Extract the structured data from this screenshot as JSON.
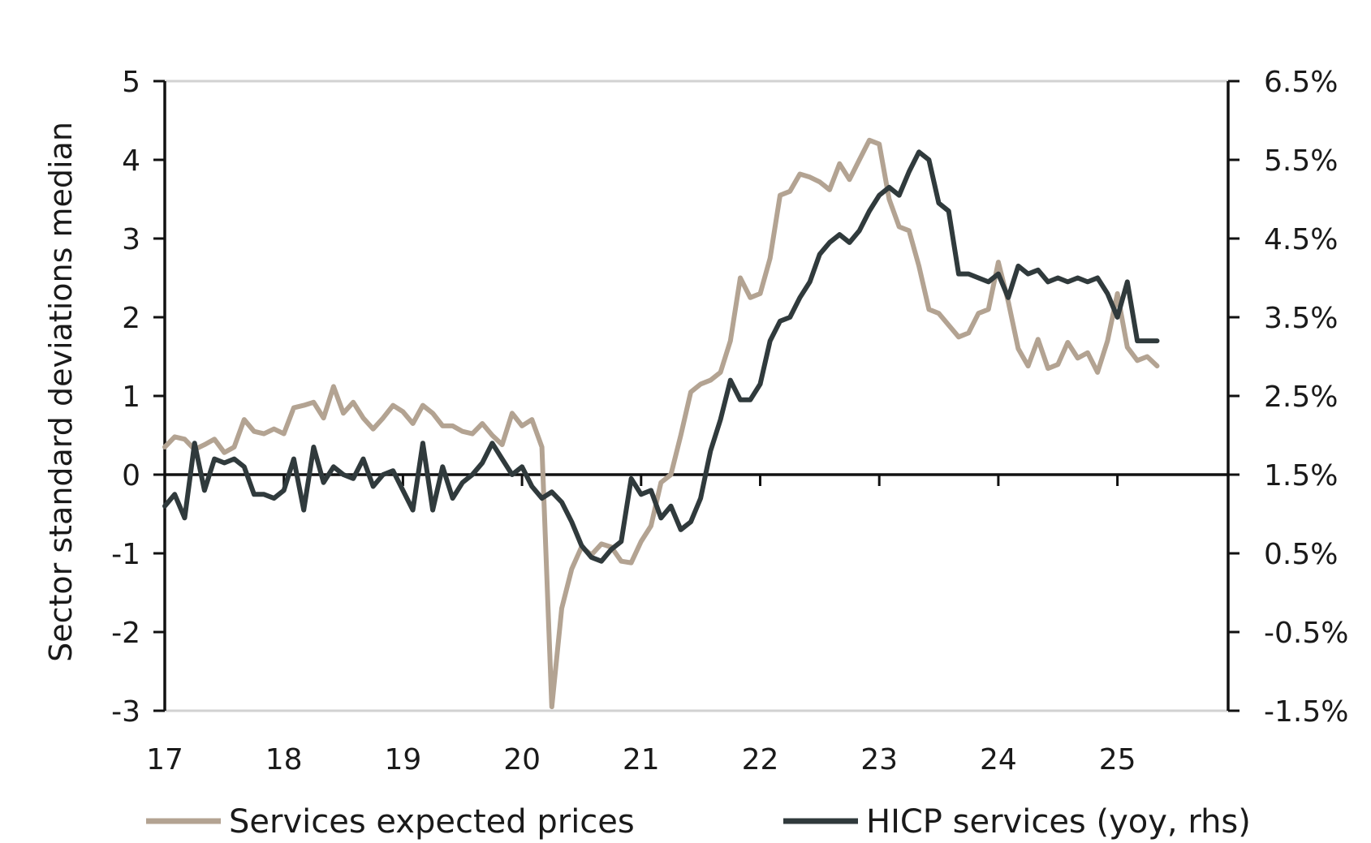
{
  "chart_data": {
    "type": "line",
    "ylabel": "Sector standard deviations median",
    "ylim": [
      -3,
      5
    ],
    "y_ticks": [
      "5",
      "4",
      "3",
      "2",
      "1",
      "0",
      "-1",
      "-2",
      "-3"
    ],
    "y2lim": [
      -1.5,
      6.5
    ],
    "y2_ticks": [
      "6.5%",
      "5.5%",
      "4.5%",
      "3.5%",
      "2.5%",
      "1.5%",
      "0.5%",
      "-0.5%",
      "-1.5%"
    ],
    "x_tick_labels": [
      "17",
      "18",
      "19",
      "20",
      "21",
      "22",
      "23",
      "24",
      "25"
    ],
    "grid": false,
    "legend_position": "bottom",
    "series": [
      {
        "name": "Services expected prices",
        "axis": "left",
        "color": "#b3a392",
        "x": [
          17.0,
          17.083,
          17.167,
          17.25,
          17.333,
          17.417,
          17.5,
          17.583,
          17.667,
          17.75,
          17.833,
          17.917,
          18.0,
          18.083,
          18.167,
          18.25,
          18.333,
          18.417,
          18.5,
          18.583,
          18.667,
          18.75,
          18.833,
          18.917,
          19.0,
          19.083,
          19.167,
          19.25,
          19.333,
          19.417,
          19.5,
          19.583,
          19.667,
          19.75,
          19.833,
          19.917,
          20.0,
          20.083,
          20.167,
          20.25,
          20.333,
          20.417,
          20.5,
          20.583,
          20.667,
          20.75,
          20.833,
          20.917,
          21.0,
          21.083,
          21.167,
          21.25,
          21.333,
          21.417,
          21.5,
          21.583,
          21.667,
          21.75,
          21.833,
          21.917,
          22.0,
          22.083,
          22.167,
          22.25,
          22.333,
          22.417,
          22.5,
          22.583,
          22.667,
          22.75,
          22.833,
          22.917,
          23.0,
          23.083,
          23.167,
          23.25,
          23.333,
          23.417,
          23.5,
          23.583,
          23.667,
          23.75,
          23.833,
          23.917,
          24.0,
          24.083,
          24.167,
          24.25,
          24.333,
          24.417,
          24.5,
          24.583,
          24.667,
          24.75,
          24.833,
          24.917,
          25.0,
          25.083,
          25.167,
          25.25,
          25.333
        ],
        "values": [
          0.35,
          0.48,
          0.45,
          0.32,
          0.38,
          0.45,
          0.28,
          0.35,
          0.7,
          0.55,
          0.52,
          0.58,
          0.52,
          0.85,
          0.88,
          0.92,
          0.72,
          1.12,
          0.78,
          0.92,
          0.72,
          0.58,
          0.72,
          0.88,
          0.8,
          0.65,
          0.88,
          0.78,
          0.62,
          0.62,
          0.55,
          0.52,
          0.65,
          0.5,
          0.38,
          0.78,
          0.62,
          0.7,
          0.35,
          -2.95,
          -1.7,
          -1.2,
          -0.92,
          -1.02,
          -0.88,
          -0.92,
          -1.1,
          -1.12,
          -0.85,
          -0.65,
          -0.1,
          0.0,
          0.5,
          1.05,
          1.15,
          1.2,
          1.3,
          1.7,
          2.5,
          2.25,
          2.3,
          2.75,
          3.55,
          3.6,
          3.82,
          3.78,
          3.72,
          3.62,
          3.95,
          3.75,
          4.0,
          4.25,
          4.2,
          3.5,
          3.15,
          3.1,
          2.65,
          2.1,
          2.05,
          1.9,
          1.75,
          1.8,
          2.05,
          2.1,
          2.7,
          2.2,
          1.6,
          1.38,
          1.72,
          1.35,
          1.4,
          1.68,
          1.48,
          1.55,
          1.3,
          1.7,
          2.3,
          1.62,
          1.45,
          1.5,
          1.38
        ]
      },
      {
        "name": "HICP services (yoy, rhs)",
        "axis": "right",
        "color": "#303a3c",
        "x": [
          17.0,
          17.083,
          17.167,
          17.25,
          17.333,
          17.417,
          17.5,
          17.583,
          17.667,
          17.75,
          17.833,
          17.917,
          18.0,
          18.083,
          18.167,
          18.25,
          18.333,
          18.417,
          18.5,
          18.583,
          18.667,
          18.75,
          18.833,
          18.917,
          19.0,
          19.083,
          19.167,
          19.25,
          19.333,
          19.417,
          19.5,
          19.583,
          19.667,
          19.75,
          19.833,
          19.917,
          20.0,
          20.083,
          20.167,
          20.25,
          20.333,
          20.417,
          20.5,
          20.583,
          20.667,
          20.75,
          20.833,
          20.917,
          21.0,
          21.083,
          21.167,
          21.25,
          21.333,
          21.417,
          21.5,
          21.583,
          21.667,
          21.75,
          21.833,
          21.917,
          22.0,
          22.083,
          22.167,
          22.25,
          22.333,
          22.417,
          22.5,
          22.583,
          22.667,
          22.75,
          22.833,
          22.917,
          23.0,
          23.083,
          23.167,
          23.25,
          23.333,
          23.417,
          23.5,
          23.583,
          23.667,
          23.75,
          23.833,
          23.917,
          24.0,
          24.083,
          24.167,
          24.25,
          24.333,
          24.417,
          24.5,
          24.583,
          24.667,
          24.75,
          24.833,
          24.917,
          25.0,
          25.083,
          25.167,
          25.25,
          25.333
        ],
        "values": [
          1.1,
          1.25,
          0.95,
          1.9,
          1.3,
          1.7,
          1.65,
          1.7,
          1.6,
          1.25,
          1.25,
          1.2,
          1.3,
          1.7,
          1.05,
          1.85,
          1.4,
          1.6,
          1.5,
          1.45,
          1.7,
          1.35,
          1.5,
          1.55,
          1.3,
          1.05,
          1.9,
          1.05,
          1.6,
          1.2,
          1.4,
          1.5,
          1.65,
          1.9,
          1.7,
          1.5,
          1.6,
          1.35,
          1.2,
          1.28,
          1.15,
          0.9,
          0.6,
          0.45,
          0.4,
          0.55,
          0.65,
          1.45,
          1.25,
          1.3,
          0.95,
          1.1,
          0.8,
          0.9,
          1.2,
          1.8,
          2.2,
          2.7,
          2.45,
          2.45,
          2.65,
          3.2,
          3.45,
          3.5,
          3.75,
          3.95,
          4.3,
          4.45,
          4.55,
          4.45,
          4.6,
          4.85,
          5.05,
          5.15,
          5.05,
          5.35,
          5.6,
          5.5,
          4.95,
          4.85,
          4.05,
          4.05,
          4.0,
          3.95,
          4.05,
          3.75,
          4.15,
          4.05,
          4.1,
          3.95,
          4.0,
          3.95,
          4.0,
          3.95,
          4.0,
          3.8,
          3.5,
          3.95,
          3.2,
          3.2,
          3.2
        ]
      }
    ]
  }
}
